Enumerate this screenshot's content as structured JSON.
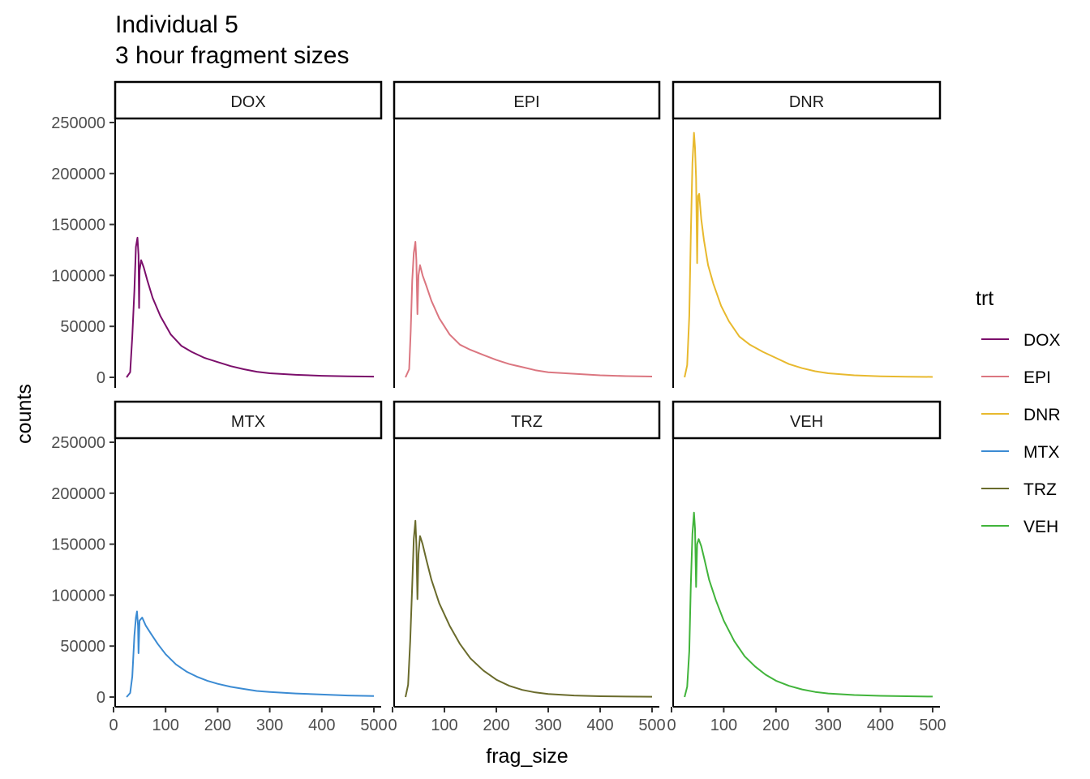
{
  "title_line1": "Individual 5",
  "title_line2": "3 hour fragment sizes",
  "legend_title": "trt",
  "chart_data": {
    "type": "line",
    "xlabel": "frag_size",
    "ylabel": "counts",
    "xlim": [
      0,
      500
    ],
    "ylim": [
      0,
      250000
    ],
    "x_ticks": [
      "0",
      "100",
      "200",
      "300",
      "400",
      "500"
    ],
    "y_ticks": [
      "0",
      "50000",
      "100000",
      "150000",
      "200000",
      "250000"
    ],
    "grid": false,
    "legend_position": "right",
    "facets": [
      {
        "name": "DOX",
        "color": "#7B0E6B",
        "points": [
          [
            25,
            0
          ],
          [
            32,
            5000
          ],
          [
            36,
            40000
          ],
          [
            40,
            85000
          ],
          [
            43,
            128000
          ],
          [
            46,
            137000
          ],
          [
            48,
            120000
          ],
          [
            49,
            68000
          ],
          [
            50,
            105000
          ],
          [
            53,
            115000
          ],
          [
            58,
            108000
          ],
          [
            65,
            95000
          ],
          [
            75,
            78000
          ],
          [
            90,
            60000
          ],
          [
            110,
            42000
          ],
          [
            130,
            31000
          ],
          [
            150,
            25000
          ],
          [
            175,
            19000
          ],
          [
            200,
            15000
          ],
          [
            225,
            11000
          ],
          [
            250,
            8000
          ],
          [
            275,
            5500
          ],
          [
            300,
            4000
          ],
          [
            350,
            2500
          ],
          [
            400,
            1500
          ],
          [
            450,
            1000
          ],
          [
            500,
            700
          ]
        ]
      },
      {
        "name": "EPI",
        "color": "#DB7680",
        "points": [
          [
            25,
            0
          ],
          [
            32,
            8000
          ],
          [
            35,
            45000
          ],
          [
            38,
            95000
          ],
          [
            41,
            122000
          ],
          [
            44,
            133000
          ],
          [
            46,
            115000
          ],
          [
            48,
            62000
          ],
          [
            50,
            100000
          ],
          [
            53,
            110000
          ],
          [
            58,
            100000
          ],
          [
            65,
            90000
          ],
          [
            75,
            75000
          ],
          [
            90,
            58000
          ],
          [
            110,
            42000
          ],
          [
            130,
            32000
          ],
          [
            150,
            27000
          ],
          [
            175,
            22000
          ],
          [
            200,
            17000
          ],
          [
            225,
            13000
          ],
          [
            250,
            10000
          ],
          [
            275,
            7000
          ],
          [
            300,
            5000
          ],
          [
            350,
            3500
          ],
          [
            400,
            2000
          ],
          [
            450,
            1200
          ],
          [
            500,
            800
          ]
        ]
      },
      {
        "name": "DNR",
        "color": "#E8B92E",
        "points": [
          [
            25,
            0
          ],
          [
            30,
            12000
          ],
          [
            34,
            60000
          ],
          [
            37,
            140000
          ],
          [
            40,
            210000
          ],
          [
            43,
            240000
          ],
          [
            45,
            225000
          ],
          [
            47,
            195000
          ],
          [
            49,
            112000
          ],
          [
            51,
            178000
          ],
          [
            53,
            180000
          ],
          [
            57,
            155000
          ],
          [
            62,
            135000
          ],
          [
            70,
            110000
          ],
          [
            80,
            92000
          ],
          [
            95,
            70000
          ],
          [
            110,
            55000
          ],
          [
            130,
            40000
          ],
          [
            150,
            32000
          ],
          [
            175,
            25000
          ],
          [
            200,
            19000
          ],
          [
            225,
            13000
          ],
          [
            250,
            9000
          ],
          [
            275,
            6000
          ],
          [
            300,
            4000
          ],
          [
            350,
            2000
          ],
          [
            400,
            1000
          ],
          [
            450,
            600
          ],
          [
            500,
            400
          ]
        ]
      },
      {
        "name": "MTX",
        "color": "#3B8BD3",
        "points": [
          [
            25,
            0
          ],
          [
            32,
            4000
          ],
          [
            36,
            20000
          ],
          [
            40,
            60000
          ],
          [
            43,
            78000
          ],
          [
            45,
            84000
          ],
          [
            47,
            70000
          ],
          [
            48,
            43000
          ],
          [
            50,
            75000
          ],
          [
            55,
            78000
          ],
          [
            62,
            70000
          ],
          [
            72,
            62000
          ],
          [
            85,
            52000
          ],
          [
            100,
            42000
          ],
          [
            120,
            32000
          ],
          [
            140,
            25000
          ],
          [
            160,
            20000
          ],
          [
            180,
            16000
          ],
          [
            200,
            13000
          ],
          [
            225,
            10000
          ],
          [
            250,
            8000
          ],
          [
            275,
            6000
          ],
          [
            300,
            5000
          ],
          [
            350,
            3500
          ],
          [
            400,
            2500
          ],
          [
            450,
            1500
          ],
          [
            500,
            1000
          ]
        ]
      },
      {
        "name": "TRZ",
        "color": "#6A6B2C",
        "points": [
          [
            25,
            0
          ],
          [
            30,
            12000
          ],
          [
            34,
            55000
          ],
          [
            38,
            110000
          ],
          [
            41,
            155000
          ],
          [
            44,
            173000
          ],
          [
            46,
            150000
          ],
          [
            48,
            96000
          ],
          [
            50,
            140000
          ],
          [
            53,
            158000
          ],
          [
            58,
            150000
          ],
          [
            65,
            135000
          ],
          [
            75,
            115000
          ],
          [
            90,
            92000
          ],
          [
            110,
            70000
          ],
          [
            130,
            52000
          ],
          [
            150,
            38000
          ],
          [
            175,
            26000
          ],
          [
            200,
            17000
          ],
          [
            225,
            11000
          ],
          [
            250,
            7000
          ],
          [
            275,
            4500
          ],
          [
            300,
            3000
          ],
          [
            350,
            1500
          ],
          [
            400,
            800
          ],
          [
            450,
            500
          ],
          [
            500,
            300
          ]
        ]
      },
      {
        "name": "VEH",
        "color": "#41B43B",
        "points": [
          [
            25,
            0
          ],
          [
            30,
            10000
          ],
          [
            34,
            45000
          ],
          [
            37,
            110000
          ],
          [
            40,
            160000
          ],
          [
            43,
            181000
          ],
          [
            45,
            165000
          ],
          [
            47,
            108000
          ],
          [
            49,
            150000
          ],
          [
            52,
            155000
          ],
          [
            57,
            148000
          ],
          [
            63,
            135000
          ],
          [
            72,
            115000
          ],
          [
            85,
            95000
          ],
          [
            100,
            75000
          ],
          [
            120,
            55000
          ],
          [
            140,
            40000
          ],
          [
            160,
            30000
          ],
          [
            180,
            22000
          ],
          [
            200,
            16000
          ],
          [
            225,
            11000
          ],
          [
            250,
            7500
          ],
          [
            275,
            5000
          ],
          [
            300,
            3500
          ],
          [
            350,
            2000
          ],
          [
            400,
            1200
          ],
          [
            450,
            800
          ],
          [
            500,
            500
          ]
        ]
      }
    ]
  }
}
